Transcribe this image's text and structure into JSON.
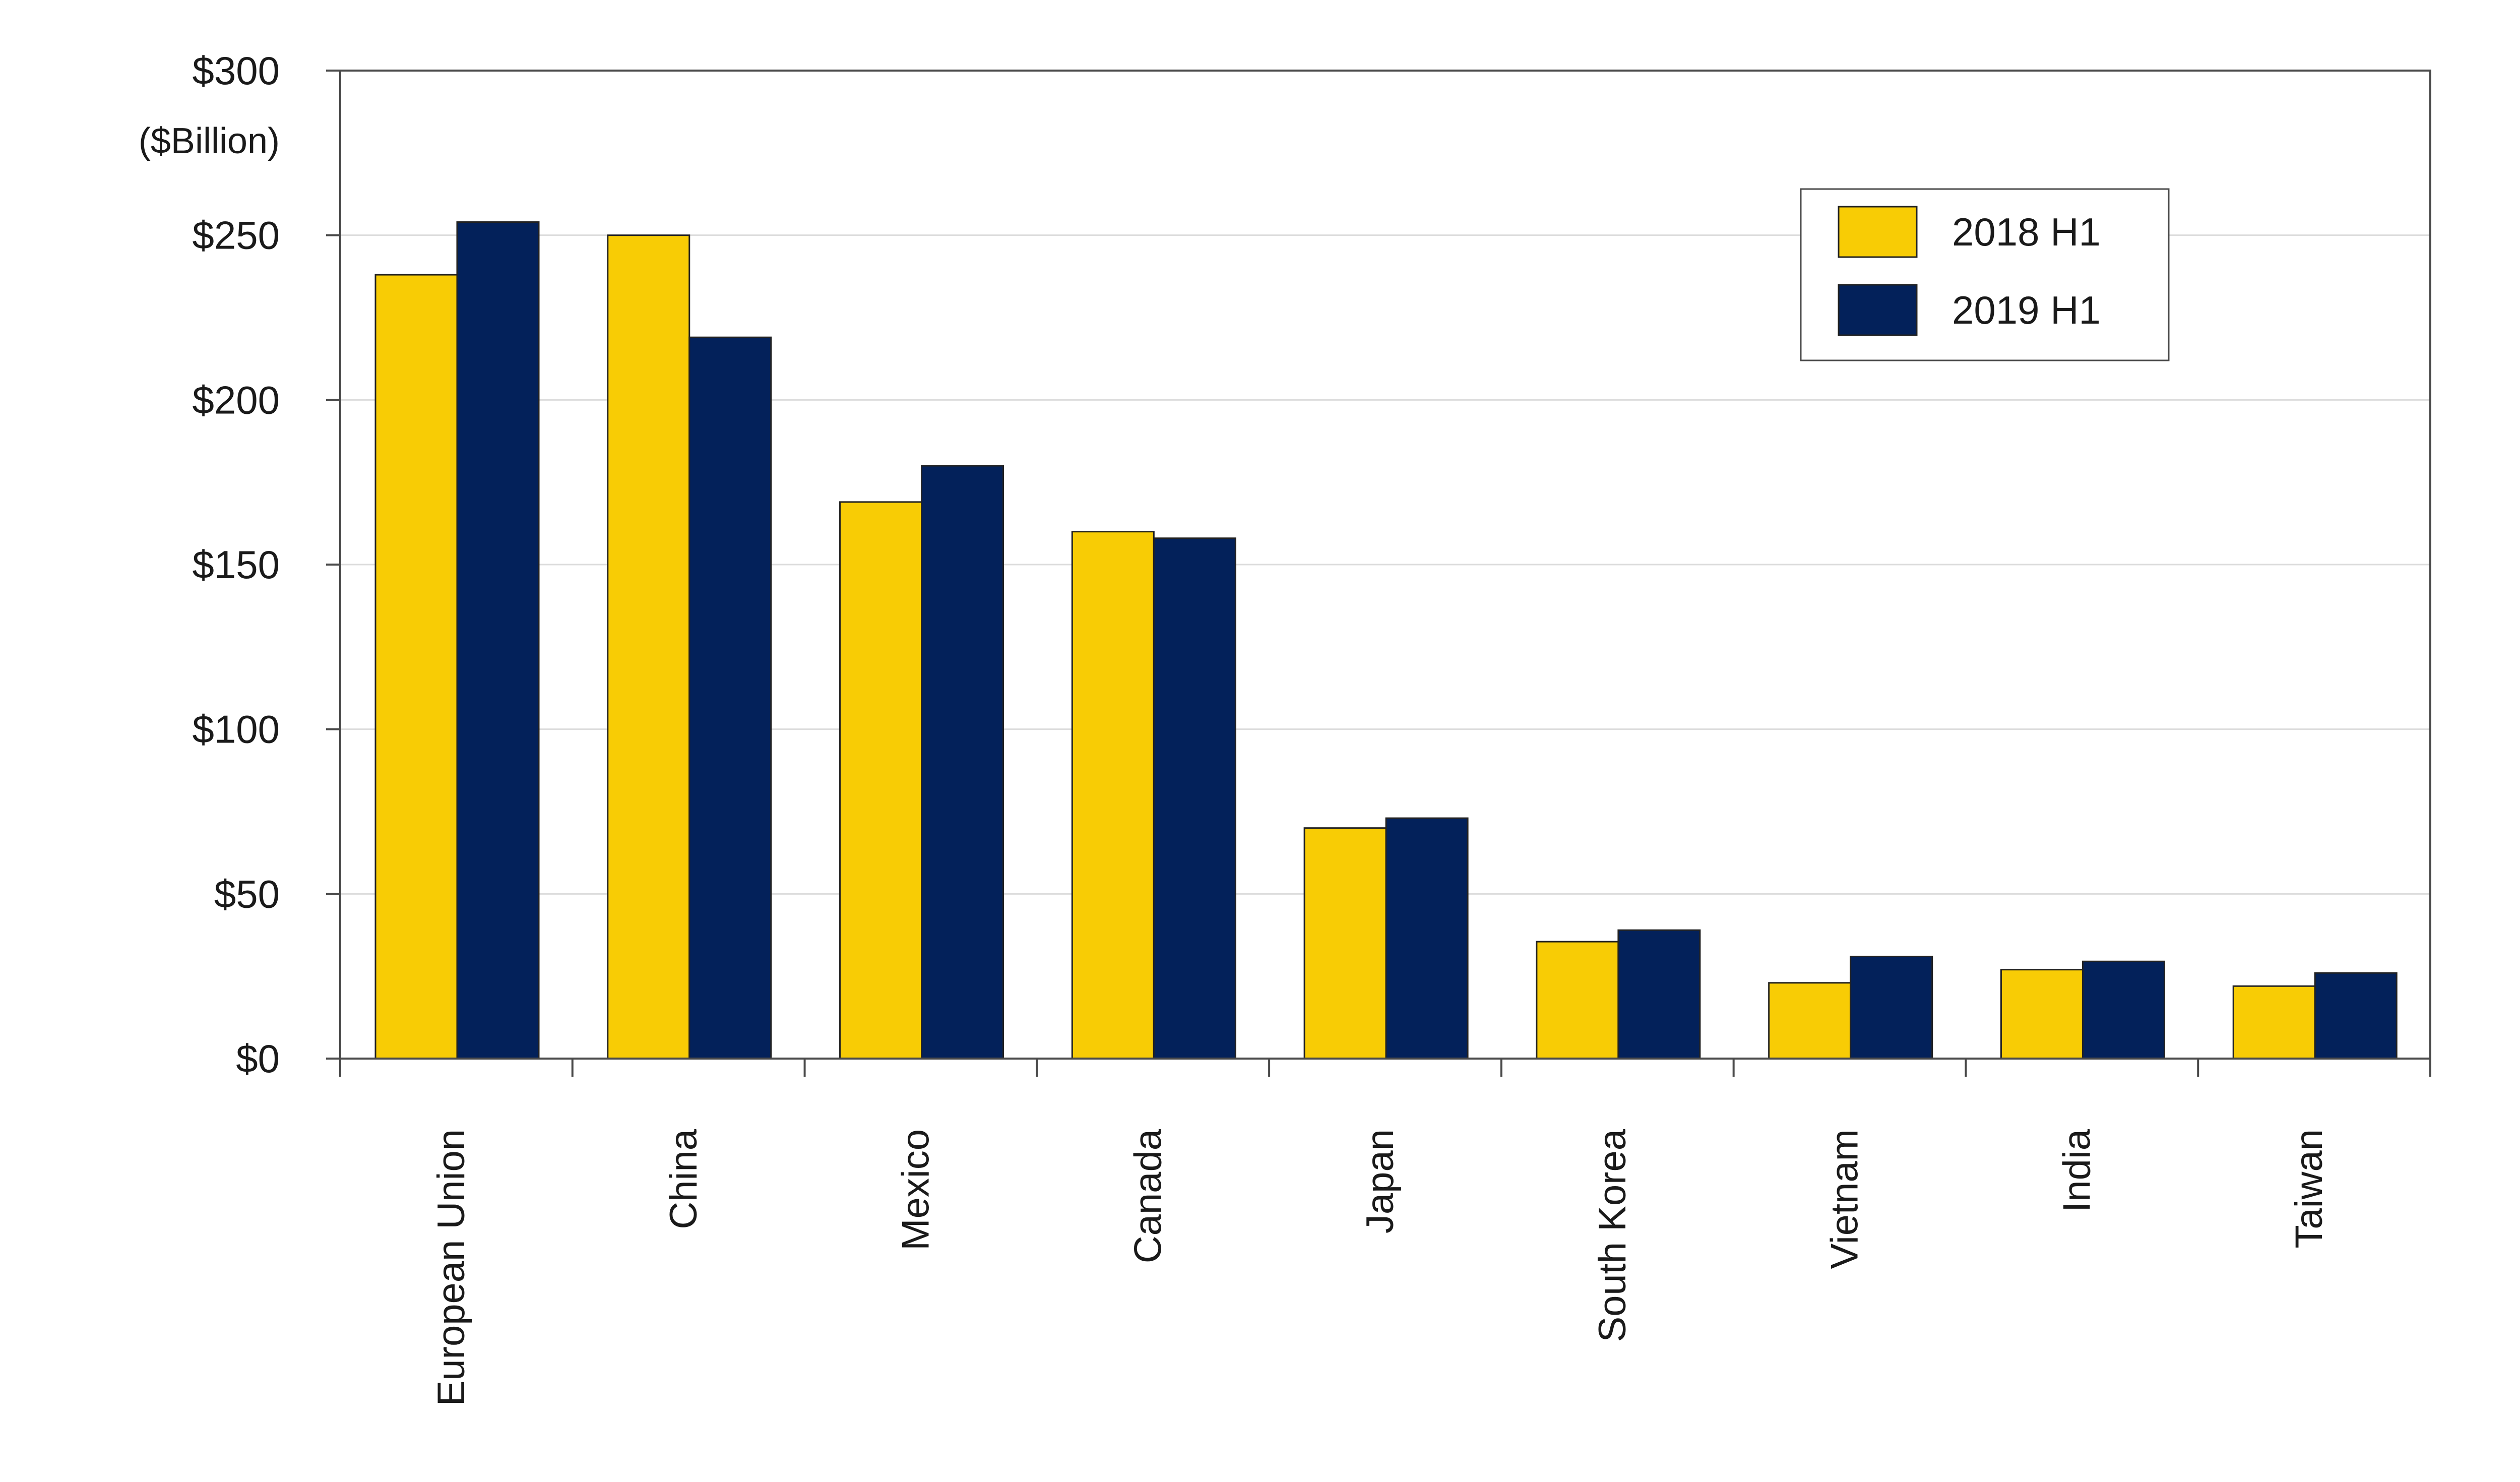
{
  "chart_data": {
    "type": "bar",
    "ylabel": "($Billion)",
    "ylim": [
      0,
      300
    ],
    "yticks": [
      0,
      50,
      100,
      150,
      200,
      250,
      300
    ],
    "ytick_labels": [
      "$0",
      "$50",
      "$100",
      "$150",
      "$200",
      "$250",
      "$300"
    ],
    "categories": [
      "European Union",
      "China",
      "Mexico",
      "Canada",
      "Japan",
      "South Korea",
      "Vietnam",
      "India",
      "Taiwan"
    ],
    "series": [
      {
        "name": "2018 H1",
        "color": "#f8cc05",
        "values": [
          238,
          250,
          169,
          160,
          70,
          35.5,
          23,
          27,
          22
        ]
      },
      {
        "name": "2019 H1",
        "color": "#03215a",
        "values": [
          254,
          219,
          180,
          158,
          73,
          39,
          31,
          29.5,
          26
        ]
      }
    ],
    "legend_position": "top-right",
    "grid": true
  }
}
